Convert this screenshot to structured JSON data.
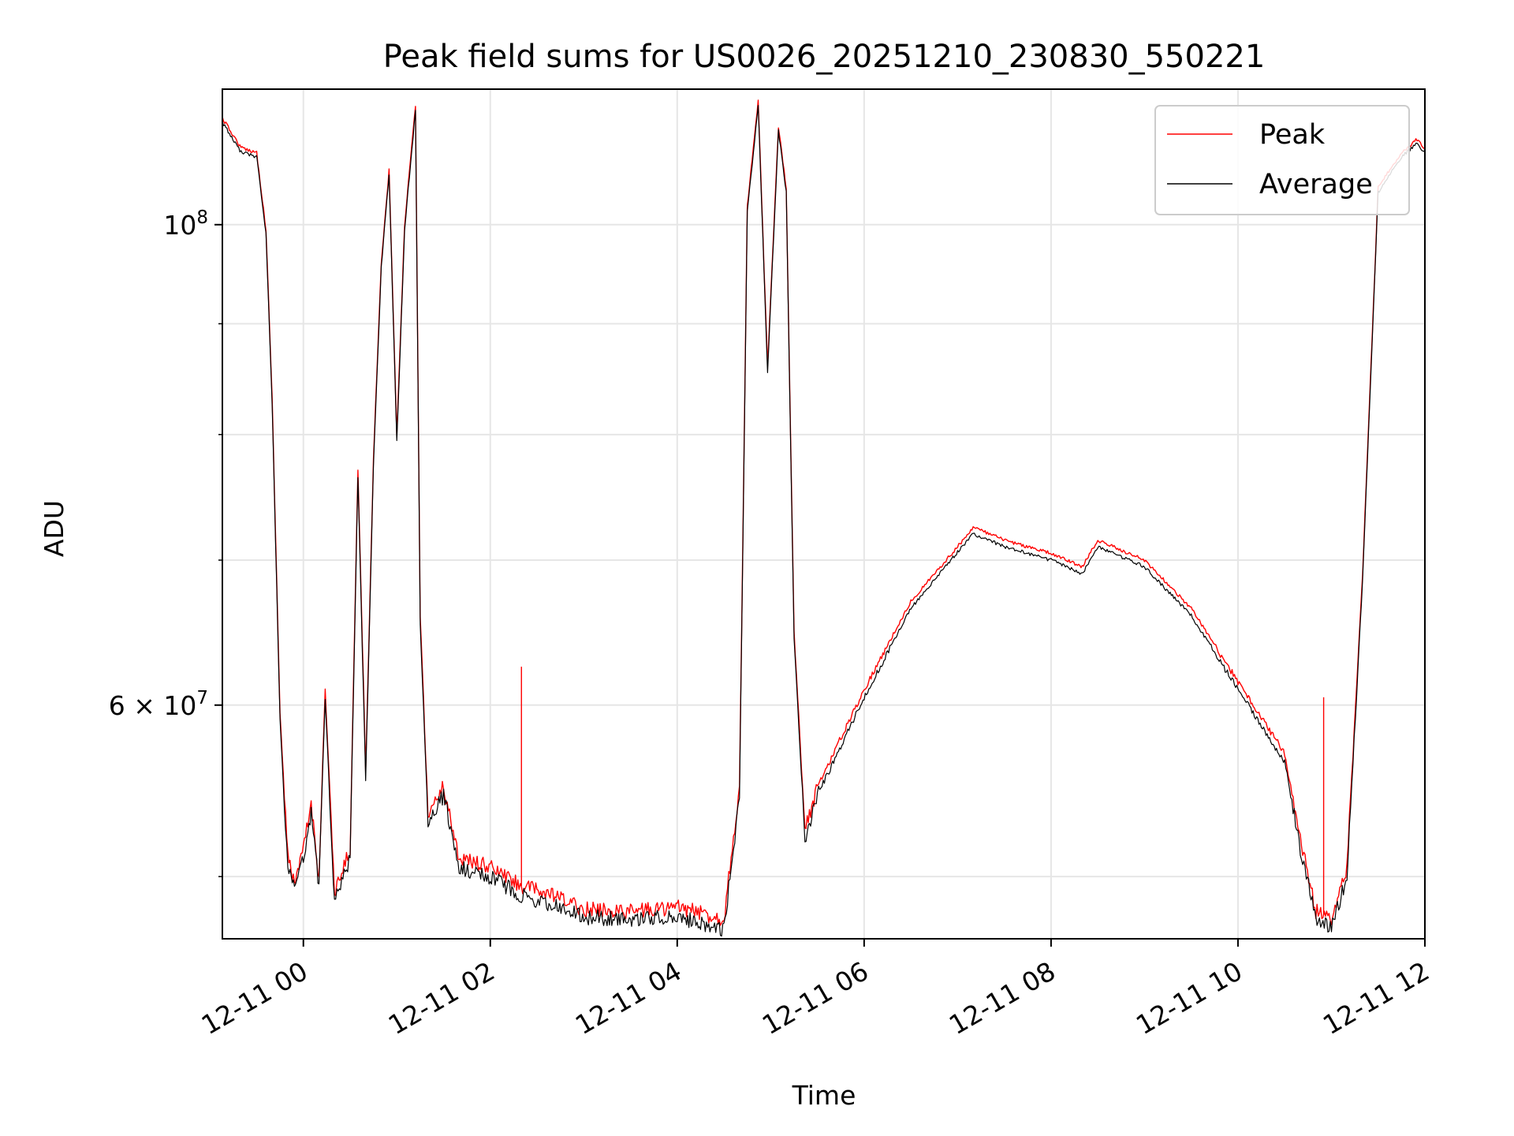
{
  "chart_data": {
    "type": "line",
    "title": "Peak field sums for US0026_20251210_230830_550221",
    "xlabel": "Time",
    "ylabel": "ADU",
    "x_scale": "time",
    "y_scale": "log",
    "xlim": [
      "2025-12-10 23:08",
      "2025-12-11 12:00"
    ],
    "ylim": [
      46800000,
      115500000
    ],
    "x_ticks": [
      {
        "value": "2025-12-11 00:00",
        "label": "12-11 00"
      },
      {
        "value": "2025-12-11 02:00",
        "label": "12-11 02"
      },
      {
        "value": "2025-12-11 04:00",
        "label": "12-11 04"
      },
      {
        "value": "2025-12-11 06:00",
        "label": "12-11 06"
      },
      {
        "value": "2025-12-11 08:00",
        "label": "12-11 08"
      },
      {
        "value": "2025-12-11 10:00",
        "label": "12-11 10"
      },
      {
        "value": "2025-12-11 12:00",
        "label": "12-11 12"
      }
    ],
    "y_ticks_major": [
      {
        "value": 100000000,
        "mantissa": "10",
        "exponent": "8"
      },
      {
        "value": 60000000,
        "mantissa": "6 × 10",
        "exponent": "7"
      }
    ],
    "y_ticks_minor": [
      50000000,
      70000000,
      80000000,
      90000000
    ],
    "grid": true,
    "legend_position": "top-right",
    "series": [
      {
        "name": "Peak",
        "color": "#ff0000",
        "points": [
          [
            "2025-12-10 23:08",
            112000000
          ],
          [
            "2025-12-10 23:20",
            108500000
          ],
          [
            "2025-12-10 23:30",
            108000000
          ],
          [
            "2025-12-10 23:36",
            99500000
          ],
          [
            "2025-12-10 23:40",
            83000000
          ],
          [
            "2025-12-10 23:45",
            59500000
          ],
          [
            "2025-12-10 23:50",
            51000000
          ],
          [
            "2025-12-10 23:55",
            49600000
          ],
          [
            "2025-12-11 00:00",
            51500000
          ],
          [
            "2025-12-11 00:05",
            54000000
          ],
          [
            "2025-12-11 00:10",
            50000000
          ],
          [
            "2025-12-11 00:14",
            61000000
          ],
          [
            "2025-12-11 00:20",
            49000000
          ],
          [
            "2025-12-11 00:30",
            51500000
          ],
          [
            "2025-12-11 00:35",
            77000000
          ],
          [
            "2025-12-11 00:40",
            56000000
          ],
          [
            "2025-12-11 00:45",
            78000000
          ],
          [
            "2025-12-11 00:50",
            96000000
          ],
          [
            "2025-12-11 00:55",
            106000000
          ],
          [
            "2025-12-11 01:00",
            80000000
          ],
          [
            "2025-12-11 01:05",
            100000000
          ],
          [
            "2025-12-11 01:12",
            113500000
          ],
          [
            "2025-12-11 01:15",
            66000000
          ],
          [
            "2025-12-11 01:20",
            53500000
          ],
          [
            "2025-12-11 01:30",
            55000000
          ],
          [
            "2025-12-11 01:40",
            51000000
          ],
          [
            "2025-12-11 02:00",
            50500000
          ],
          [
            "2025-12-11 02:20",
            49500000
          ],
          [
            "2025-12-11 02:40",
            49000000
          ],
          [
            "2025-12-11 03:00",
            48300000
          ],
          [
            "2025-12-11 03:30",
            48200000
          ],
          [
            "2025-12-11 04:00",
            48400000
          ],
          [
            "2025-12-11 04:30",
            47800000
          ],
          [
            "2025-12-11 04:40",
            55000000
          ],
          [
            "2025-12-11 04:45",
            102000000
          ],
          [
            "2025-12-11 04:52",
            114000000
          ],
          [
            "2025-12-11 04:58",
            86000000
          ],
          [
            "2025-12-11 05:05",
            111000000
          ],
          [
            "2025-12-11 05:10",
            104000000
          ],
          [
            "2025-12-11 05:15",
            65000000
          ],
          [
            "2025-12-11 05:22",
            52500000
          ],
          [
            "2025-12-11 05:30",
            55000000
          ],
          [
            "2025-12-11 06:00",
            61000000
          ],
          [
            "2025-12-11 06:30",
            67000000
          ],
          [
            "2025-12-11 07:00",
            71000000
          ],
          [
            "2025-12-11 07:10",
            72500000
          ],
          [
            "2025-12-11 07:30",
            71500000
          ],
          [
            "2025-12-11 08:00",
            70500000
          ],
          [
            "2025-12-11 08:20",
            69500000
          ],
          [
            "2025-12-11 08:30",
            71500000
          ],
          [
            "2025-12-11 09:00",
            70000000
          ],
          [
            "2025-12-11 09:30",
            66500000
          ],
          [
            "2025-12-11 10:00",
            61500000
          ],
          [
            "2025-12-11 10:30",
            57000000
          ],
          [
            "2025-12-11 10:40",
            52000000
          ],
          [
            "2025-12-11 10:50",
            48200000
          ],
          [
            "2025-12-11 11:00",
            47800000
          ],
          [
            "2025-12-11 11:10",
            50500000
          ],
          [
            "2025-12-11 11:20",
            69000000
          ],
          [
            "2025-12-11 11:30",
            104000000
          ],
          [
            "2025-12-11 11:45",
            108000000
          ],
          [
            "2025-12-11 11:55",
            109500000
          ],
          [
            "2025-12-11 12:00",
            108500000
          ]
        ]
      },
      {
        "name": "Average",
        "color": "#000000",
        "points": [
          [
            "2025-12-10 23:08",
            111500000
          ],
          [
            "2025-12-10 23:20",
            108000000
          ],
          [
            "2025-12-10 23:30",
            107500000
          ],
          [
            "2025-12-10 23:36",
            99000000
          ],
          [
            "2025-12-10 23:40",
            82500000
          ],
          [
            "2025-12-10 23:45",
            59000000
          ],
          [
            "2025-12-10 23:50",
            50500000
          ],
          [
            "2025-12-10 23:55",
            49200000
          ],
          [
            "2025-12-11 00:00",
            51000000
          ],
          [
            "2025-12-11 00:05",
            53500000
          ],
          [
            "2025-12-11 00:10",
            49500000
          ],
          [
            "2025-12-11 00:14",
            60500000
          ],
          [
            "2025-12-11 00:20",
            48600000
          ],
          [
            "2025-12-11 00:30",
            51000000
          ],
          [
            "2025-12-11 00:35",
            76500000
          ],
          [
            "2025-12-11 00:40",
            55500000
          ],
          [
            "2025-12-11 00:45",
            77500000
          ],
          [
            "2025-12-11 00:50",
            95500000
          ],
          [
            "2025-12-11 00:55",
            105500000
          ],
          [
            "2025-12-11 01:00",
            79500000
          ],
          [
            "2025-12-11 01:05",
            99500000
          ],
          [
            "2025-12-11 01:12",
            113000000
          ],
          [
            "2025-12-11 01:15",
            65500000
          ],
          [
            "2025-12-11 01:20",
            53000000
          ],
          [
            "2025-12-11 01:30",
            54500000
          ],
          [
            "2025-12-11 01:40",
            50500000
          ],
          [
            "2025-12-11 02:00",
            50000000
          ],
          [
            "2025-12-11 02:20",
            49000000
          ],
          [
            "2025-12-11 02:40",
            48500000
          ],
          [
            "2025-12-11 03:00",
            47900000
          ],
          [
            "2025-12-11 03:30",
            47800000
          ],
          [
            "2025-12-11 04:00",
            47900000
          ],
          [
            "2025-12-11 04:30",
            47300000
          ],
          [
            "2025-12-11 04:40",
            54500000
          ],
          [
            "2025-12-11 04:45",
            101500000
          ],
          [
            "2025-12-11 04:52",
            113500000
          ],
          [
            "2025-12-11 04:58",
            85500000
          ],
          [
            "2025-12-11 05:05",
            110500000
          ],
          [
            "2025-12-11 05:10",
            103500000
          ],
          [
            "2025-12-11 05:15",
            64500000
          ],
          [
            "2025-12-11 05:22",
            52000000
          ],
          [
            "2025-12-11 05:30",
            54500000
          ],
          [
            "2025-12-11 06:00",
            60500000
          ],
          [
            "2025-12-11 06:30",
            66500000
          ],
          [
            "2025-12-11 07:00",
            70600000
          ],
          [
            "2025-12-11 07:10",
            72000000
          ],
          [
            "2025-12-11 07:30",
            71000000
          ],
          [
            "2025-12-11 08:00",
            70000000
          ],
          [
            "2025-12-11 08:20",
            69000000
          ],
          [
            "2025-12-11 08:30",
            71000000
          ],
          [
            "2025-12-11 09:00",
            69500000
          ],
          [
            "2025-12-11 09:30",
            66000000
          ],
          [
            "2025-12-11 10:00",
            61000000
          ],
          [
            "2025-12-11 10:30",
            56500000
          ],
          [
            "2025-12-11 10:40",
            51500000
          ],
          [
            "2025-12-11 10:50",
            47800000
          ],
          [
            "2025-12-11 11:00",
            47400000
          ],
          [
            "2025-12-11 11:10",
            50000000
          ],
          [
            "2025-12-11 11:20",
            68500000
          ],
          [
            "2025-12-11 11:30",
            103500000
          ],
          [
            "2025-12-11 11:45",
            107500000
          ],
          [
            "2025-12-11 11:55",
            109000000
          ],
          [
            "2025-12-11 12:00",
            108000000
          ]
        ]
      }
    ],
    "annotations": [
      {
        "series": "Peak",
        "x": "2025-12-11 02:20",
        "y": 62500000
      },
      {
        "series": "Peak",
        "x": "2025-12-11 10:55",
        "y": 60500000
      }
    ]
  }
}
